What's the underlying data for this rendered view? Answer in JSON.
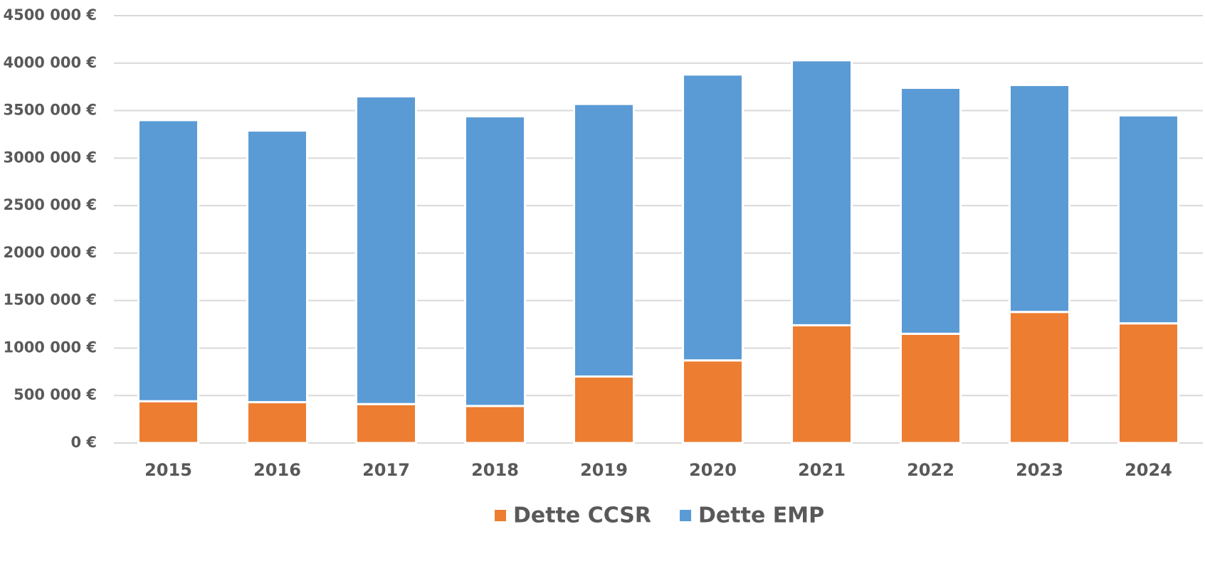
{
  "chart_data": {
    "type": "stacked-bar",
    "categories": [
      "2015",
      "2016",
      "2017",
      "2018",
      "2019",
      "2020",
      "2021",
      "2022",
      "2023",
      "2024"
    ],
    "series": [
      {
        "name": "Dette CCSR",
        "color": "#ed7d31",
        "values": [
          440000,
          430000,
          410000,
          390000,
          700000,
          870000,
          1240000,
          1150000,
          1380000,
          1260000
        ]
      },
      {
        "name": "Dette EMP",
        "color": "#5b9bd5",
        "values": [
          2960000,
          2860000,
          3240000,
          3050000,
          2870000,
          3010000,
          2790000,
          2590000,
          2390000,
          2190000
        ]
      }
    ],
    "ylim": [
      0,
      4500000
    ],
    "yticks": [
      {
        "value": 0,
        "label": "0 €"
      },
      {
        "value": 500000,
        "label": "500 000 €"
      },
      {
        "value": 1000000,
        "label": "1000 000 €"
      },
      {
        "value": 1500000,
        "label": "1500 000 €"
      },
      {
        "value": 2000000,
        "label": "2000 000 €"
      },
      {
        "value": 2500000,
        "label": "2500 000 €"
      },
      {
        "value": 3000000,
        "label": "3000 000 €"
      },
      {
        "value": 3500000,
        "label": "3500 000 €"
      },
      {
        "value": 4000000,
        "label": "4000 000 €"
      },
      {
        "value": 4500000,
        "label": "4500 000 €"
      }
    ],
    "grid": true,
    "legend": "bottom"
  }
}
